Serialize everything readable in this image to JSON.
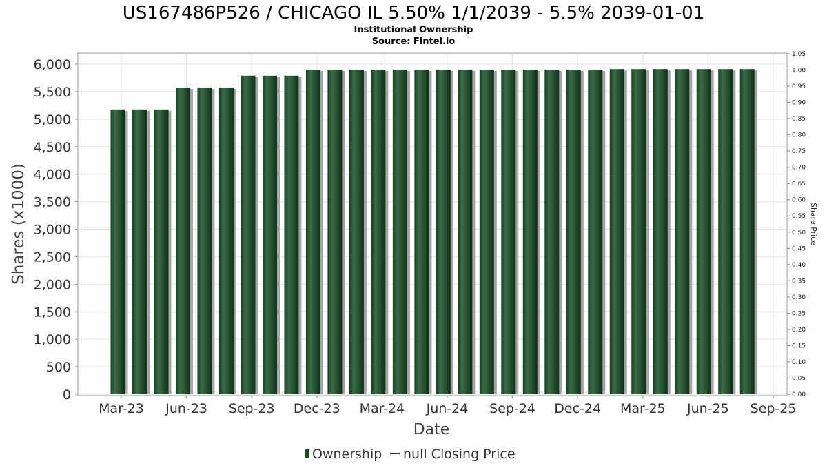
{
  "chart_data": {
    "type": "bar",
    "title": "US167486P526 / CHICAGO IL 5.50% 1/1/2039 - 5.5% 2039-01-01",
    "subtitle_lines": [
      "Institutional Ownership",
      "Source: Fintel.io"
    ],
    "xlabel": "Date",
    "ylabel": "Shares (x1000)",
    "y2label": "Share Price",
    "ylim": [
      0,
      6000
    ],
    "y2lim": [
      0,
      1.05
    ],
    "yticks": [
      "0",
      "500",
      "1,000",
      "1,500",
      "2,000",
      "2,500",
      "3,000",
      "3,500",
      "4,000",
      "4,500",
      "5,000",
      "5,500",
      "6,000"
    ],
    "y2ticks": [
      "0.00",
      "0.05",
      "0.10",
      "0.15",
      "0.20",
      "0.25",
      "0.30",
      "0.35",
      "0.40",
      "0.45",
      "0.50",
      "0.55",
      "0.60",
      "0.65",
      "0.70",
      "0.75",
      "0.80",
      "0.85",
      "0.90",
      "0.95",
      "1.00",
      "1.05"
    ],
    "xticks": [
      "Mar-23",
      "Jun-23",
      "Sep-23",
      "Dec-23",
      "Mar-24",
      "Jun-24",
      "Sep-24",
      "Dec-24",
      "Mar-25",
      "Jun-25",
      "Sep-25"
    ],
    "grid": true,
    "legend_placement": "bottom-center",
    "legend": [
      "Ownership",
      "null Closing Price"
    ],
    "series": [
      {
        "name": "Ownership",
        "color": "#1e4d2b",
        "values": [
          5175,
          5175,
          5175,
          5575,
          5575,
          5575,
          5790,
          5790,
          5790,
          5900,
          5900,
          5900,
          5900,
          5900,
          5900,
          5900,
          5900,
          5900,
          5900,
          5900,
          5900,
          5900,
          5900,
          5910,
          5910,
          5910,
          5910,
          5910,
          5910,
          5910
        ]
      },
      {
        "name": "null Closing Price",
        "color": "#333333",
        "values": []
      }
    ]
  }
}
